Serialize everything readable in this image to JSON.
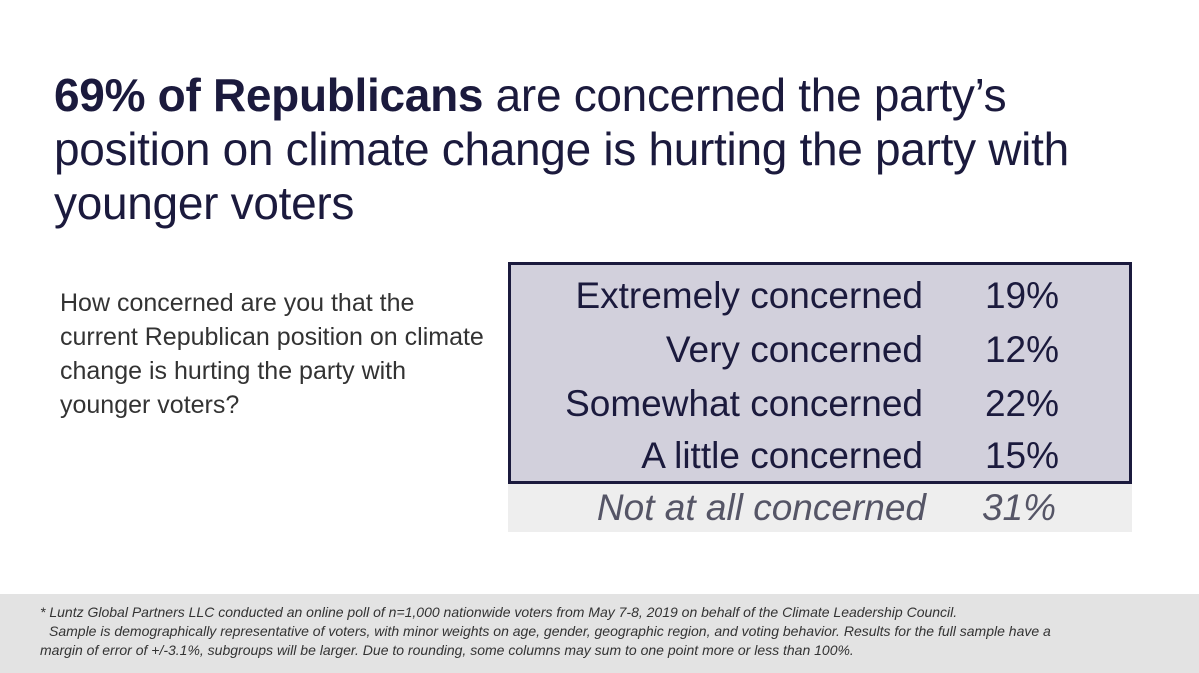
{
  "headline": {
    "emphasis": "69% of Republicans",
    "rest": " are concerned the party’s position on climate change is hurting the party with younger voters"
  },
  "question": "How concerned are you that the current Republican position on climate change is hurting the party with younger voters?",
  "chart_data": {
    "type": "table",
    "title": "",
    "categories": [
      "Extremely concerned",
      "Very concerned",
      "Somewhat concerned",
      "A little concerned",
      "Not at all concerned"
    ],
    "values": [
      19,
      12,
      22,
      15,
      31
    ],
    "value_labels": [
      "19%",
      "12%",
      "22%",
      "15%",
      "31%"
    ],
    "highlighted_group": [
      "Extremely concerned",
      "Very concerned",
      "Somewhat concerned",
      "A little concerned"
    ],
    "highlight_color": "#d2d0dc",
    "border_color": "#1b1a3d"
  },
  "footnote": {
    "line1": "* Luntz Global Partners LLC conducted an online poll of n=1,000 nationwide voters from May 7-8, 2019 on behalf of the Climate Leadership Council.",
    "line2": "Sample is demographically representative of voters, with minor weights on age, gender, geographic region, and voting behavior. Results for the full sample have a",
    "line3": "margin of error of +/-3.1%, subgroups will be larger. Due to rounding, some columns may sum to one point more or less than 100%."
  }
}
